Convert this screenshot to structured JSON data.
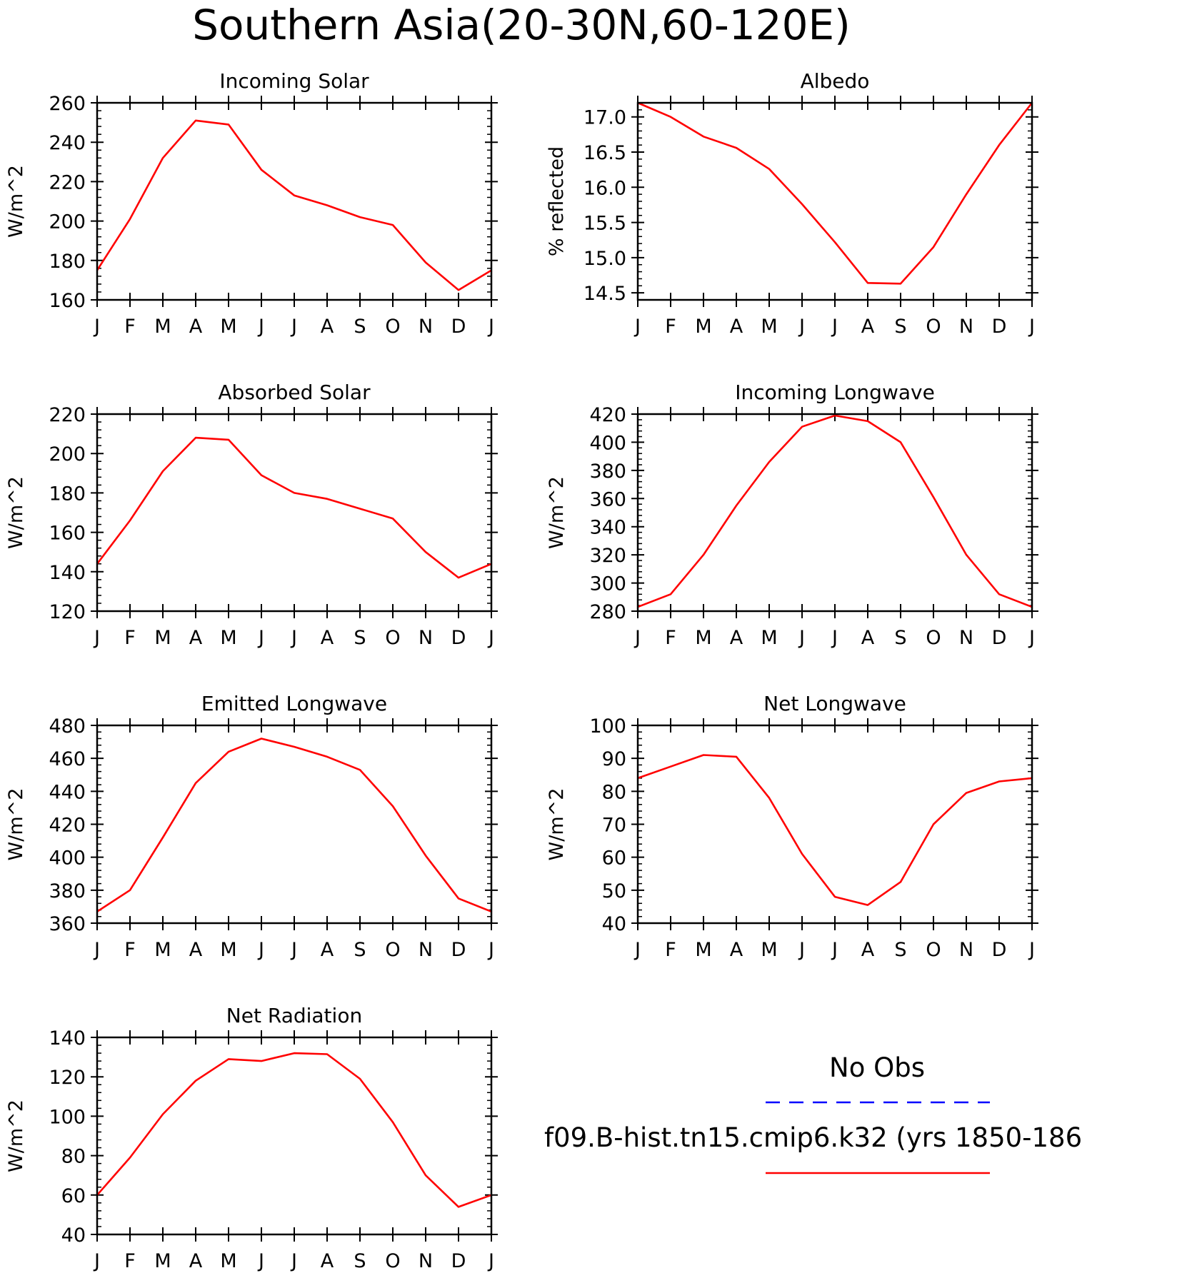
{
  "title": "Southern Asia(20-30N,60-120E)",
  "colors": {
    "model": "#ff0000",
    "obs": "#0000ff",
    "axes": "#000000"
  },
  "legend": {
    "obs_label": "No Obs",
    "model_label": "f09.B-hist.tn15.cmip6.k32 (yrs 1850-186"
  },
  "months": [
    "J",
    "F",
    "M",
    "A",
    "M",
    "J",
    "J",
    "A",
    "S",
    "O",
    "N",
    "D",
    "J"
  ],
  "chart_data": [
    {
      "type": "line",
      "title": "Incoming Solar",
      "ylabel": "W/m^2",
      "ylim": [
        160,
        260
      ],
      "yticks": [
        160,
        180,
        200,
        220,
        240,
        260
      ],
      "series": [
        {
          "values": [
            175,
            201,
            232,
            251,
            249,
            226,
            213,
            208,
            202,
            198,
            179,
            165,
            175
          ]
        }
      ]
    },
    {
      "type": "line",
      "title": "Albedo",
      "ylabel": "% reflected",
      "ylim": [
        14.4,
        17.2
      ],
      "yticks": [
        "14.5",
        "15.0",
        "15.5",
        "16.0",
        "16.5",
        "17.0"
      ],
      "series": [
        {
          "values": [
            17.2,
            17.0,
            16.72,
            16.56,
            16.26,
            15.76,
            15.22,
            14.64,
            14.63,
            15.15,
            15.9,
            16.6,
            17.2
          ]
        }
      ]
    },
    {
      "type": "line",
      "title": "Absorbed Solar",
      "ylabel": "W/m^2",
      "ylim": [
        120,
        220
      ],
      "yticks": [
        120,
        140,
        160,
        180,
        200,
        220
      ],
      "series": [
        {
          "values": [
            144,
            166,
            191,
            208,
            207,
            189,
            180,
            177,
            172,
            167,
            150,
            137,
            144
          ]
        }
      ]
    },
    {
      "type": "line",
      "title": "Incoming Longwave",
      "ylabel": "W/m^2",
      "ylim": [
        280,
        420
      ],
      "yticks": [
        280,
        300,
        320,
        340,
        360,
        380,
        400,
        420
      ],
      "series": [
        {
          "values": [
            283,
            292,
            320,
            355,
            386,
            411,
            419,
            415,
            400,
            361,
            320,
            292,
            283
          ]
        }
      ]
    },
    {
      "type": "line",
      "title": "Emitted Longwave",
      "ylabel": "W/m^2",
      "ylim": [
        360,
        480
      ],
      "yticks": [
        360,
        380,
        400,
        420,
        440,
        460,
        480
      ],
      "series": [
        {
          "values": [
            367,
            380,
            412,
            445,
            464,
            472,
            467,
            461,
            453,
            431,
            401,
            375,
            367
          ]
        }
      ]
    },
    {
      "type": "line",
      "title": "Net Longwave",
      "ylabel": "W/m^2",
      "ylim": [
        40,
        100
      ],
      "yticks": [
        40,
        50,
        60,
        70,
        80,
        90,
        100
      ],
      "series": [
        {
          "values": [
            84,
            87.5,
            91,
            90.5,
            78,
            61,
            48,
            45.5,
            52.5,
            70,
            79.5,
            83,
            84
          ]
        }
      ]
    },
    {
      "type": "line",
      "title": "Net Radiation",
      "ylabel": "W/m^2",
      "ylim": [
        40,
        140
      ],
      "yticks": [
        40,
        60,
        80,
        100,
        120,
        140
      ],
      "series": [
        {
          "values": [
            60,
            79,
            101,
            118,
            129,
            128,
            132,
            131.5,
            119,
            97,
            70,
            54,
            60
          ]
        }
      ]
    }
  ]
}
